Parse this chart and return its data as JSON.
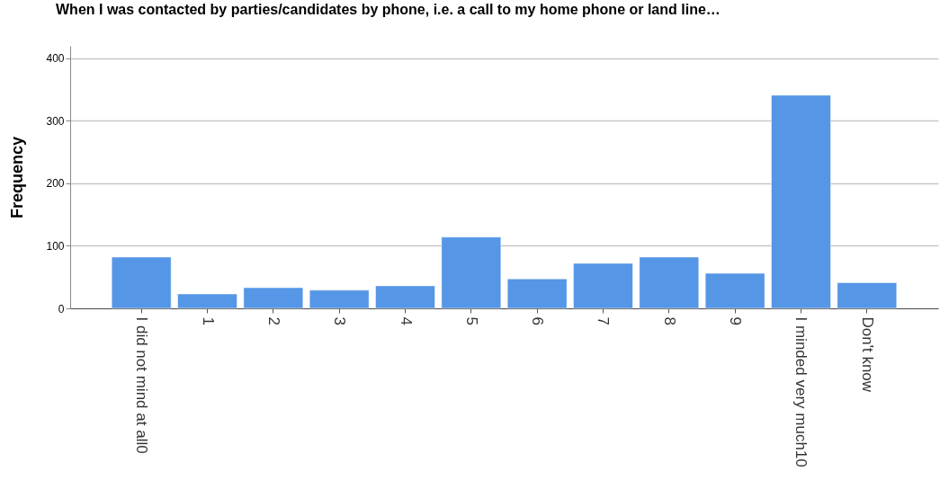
{
  "chart_data": {
    "type": "bar",
    "title": "When I was contacted by parties/candidates by phone, i.e. a call to my home phone or land line…",
    "ylabel": "Frequency",
    "categories": [
      "I did not mind at all0",
      "1",
      "2",
      "3",
      "4",
      "5",
      "6",
      "7",
      "8",
      "9",
      "I minded very much10",
      "Don't know"
    ],
    "values": [
      82,
      23,
      33,
      29,
      36,
      114,
      47,
      72,
      82,
      56,
      341,
      41
    ],
    "color": "#5596e6",
    "ylim": [
      0,
      420
    ],
    "yticks": [
      0,
      100,
      200,
      300,
      400
    ],
    "grid": "y"
  }
}
